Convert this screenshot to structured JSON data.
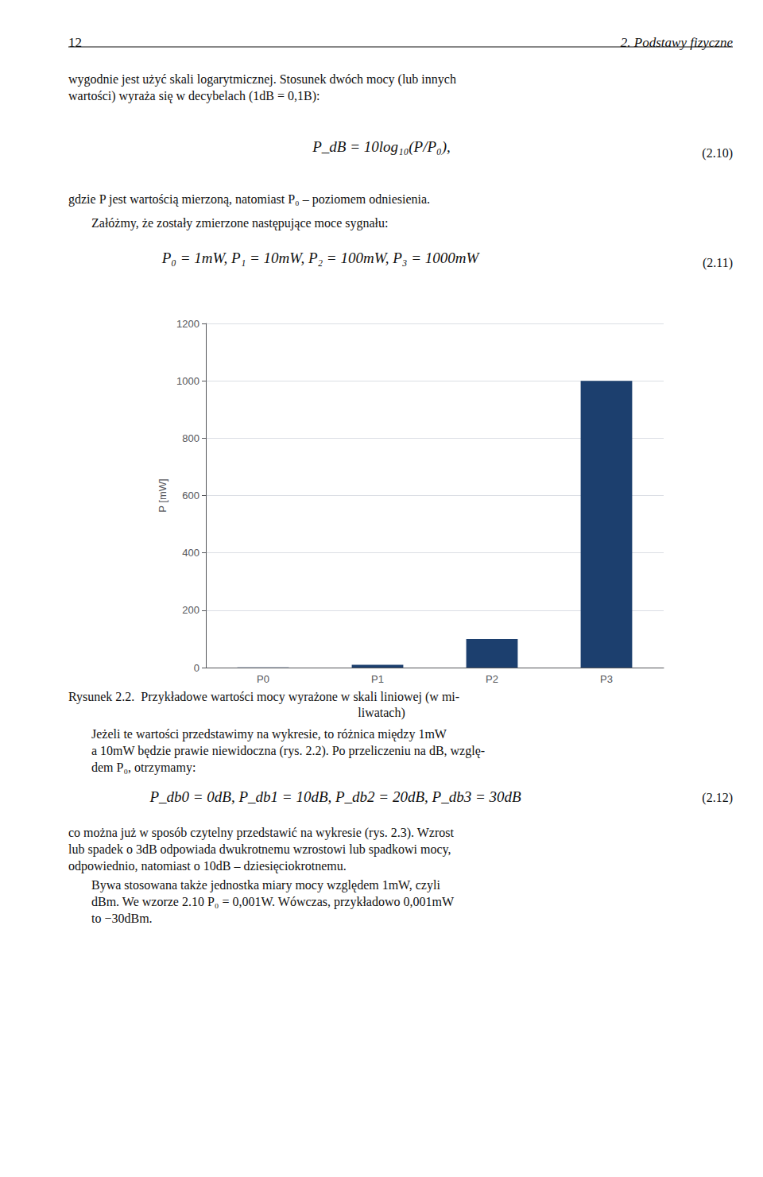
{
  "chart_data": {
    "type": "bar",
    "categories": [
      "P0",
      "P1",
      "P2",
      "P3"
    ],
    "values": [
      1,
      10,
      100,
      1000
    ],
    "color": "#1c3f6e",
    "ylabel": "P [mW]",
    "ylim": [
      0,
      1200
    ],
    "yticks": [
      0,
      200,
      400,
      600,
      800,
      1000,
      1200
    ],
    "grid": true,
    "annotations": [
      "12",
      "2. Podstawy fizyczne",
      "wygodnie jest użyć skali logarytmicznej. Stosunek dwóch mocy (lub innych\nwartości) wyraża się w decybelach (1dB = 0,1B):",
      "P_dB = 10log₁₀(P/P₀),",
      "(2.10)",
      "gdzie P jest wartością mierzoną, natomiast P₀ – poziomem odniesienia.",
      "Załóżmy, że zostały zmierzone następujące moce sygnału:",
      "P₀ = 1mW, P₁ = 10mW, P₂ = 100mW, P₃ = 1000mW",
      "(2.11)",
      "Rysunek 2.2.  Przykładowe wartości mocy wyrażone w skali liniowej (w mi-",
      "liwatach)",
      "Jeżeli te wartości przedstawimy na wykresie, to różnica między 1mW\na 10mW będzie prawie niewidoczna (rys. 2.2). Po przeliczeniu na dB, wzglę-\ndem P₀, otrzymamy:",
      "P_db0 = 0dB, P_db1 = 10dB, P_db2 = 20dB, P_db3 = 30dB",
      "(2.12)",
      "co można już w sposób czytelny przedstawić na wykresie (rys. 2.3). Wzrost\nlub spadek o 3dB odpowiada dwukrotnemu wzrostowi lub spadkowi mocy,\nodpowiednio, natomiast o 10dB – dziesięciokrotnemu.",
      "Bywa stosowana także jednostka miary mocy względem 1mW, czyli\ndBm. We wzorze 2.10 P₀ = 0,001W. Wówczas, przykładowo 0,001mW\nto −30dBm."
    ]
  }
}
